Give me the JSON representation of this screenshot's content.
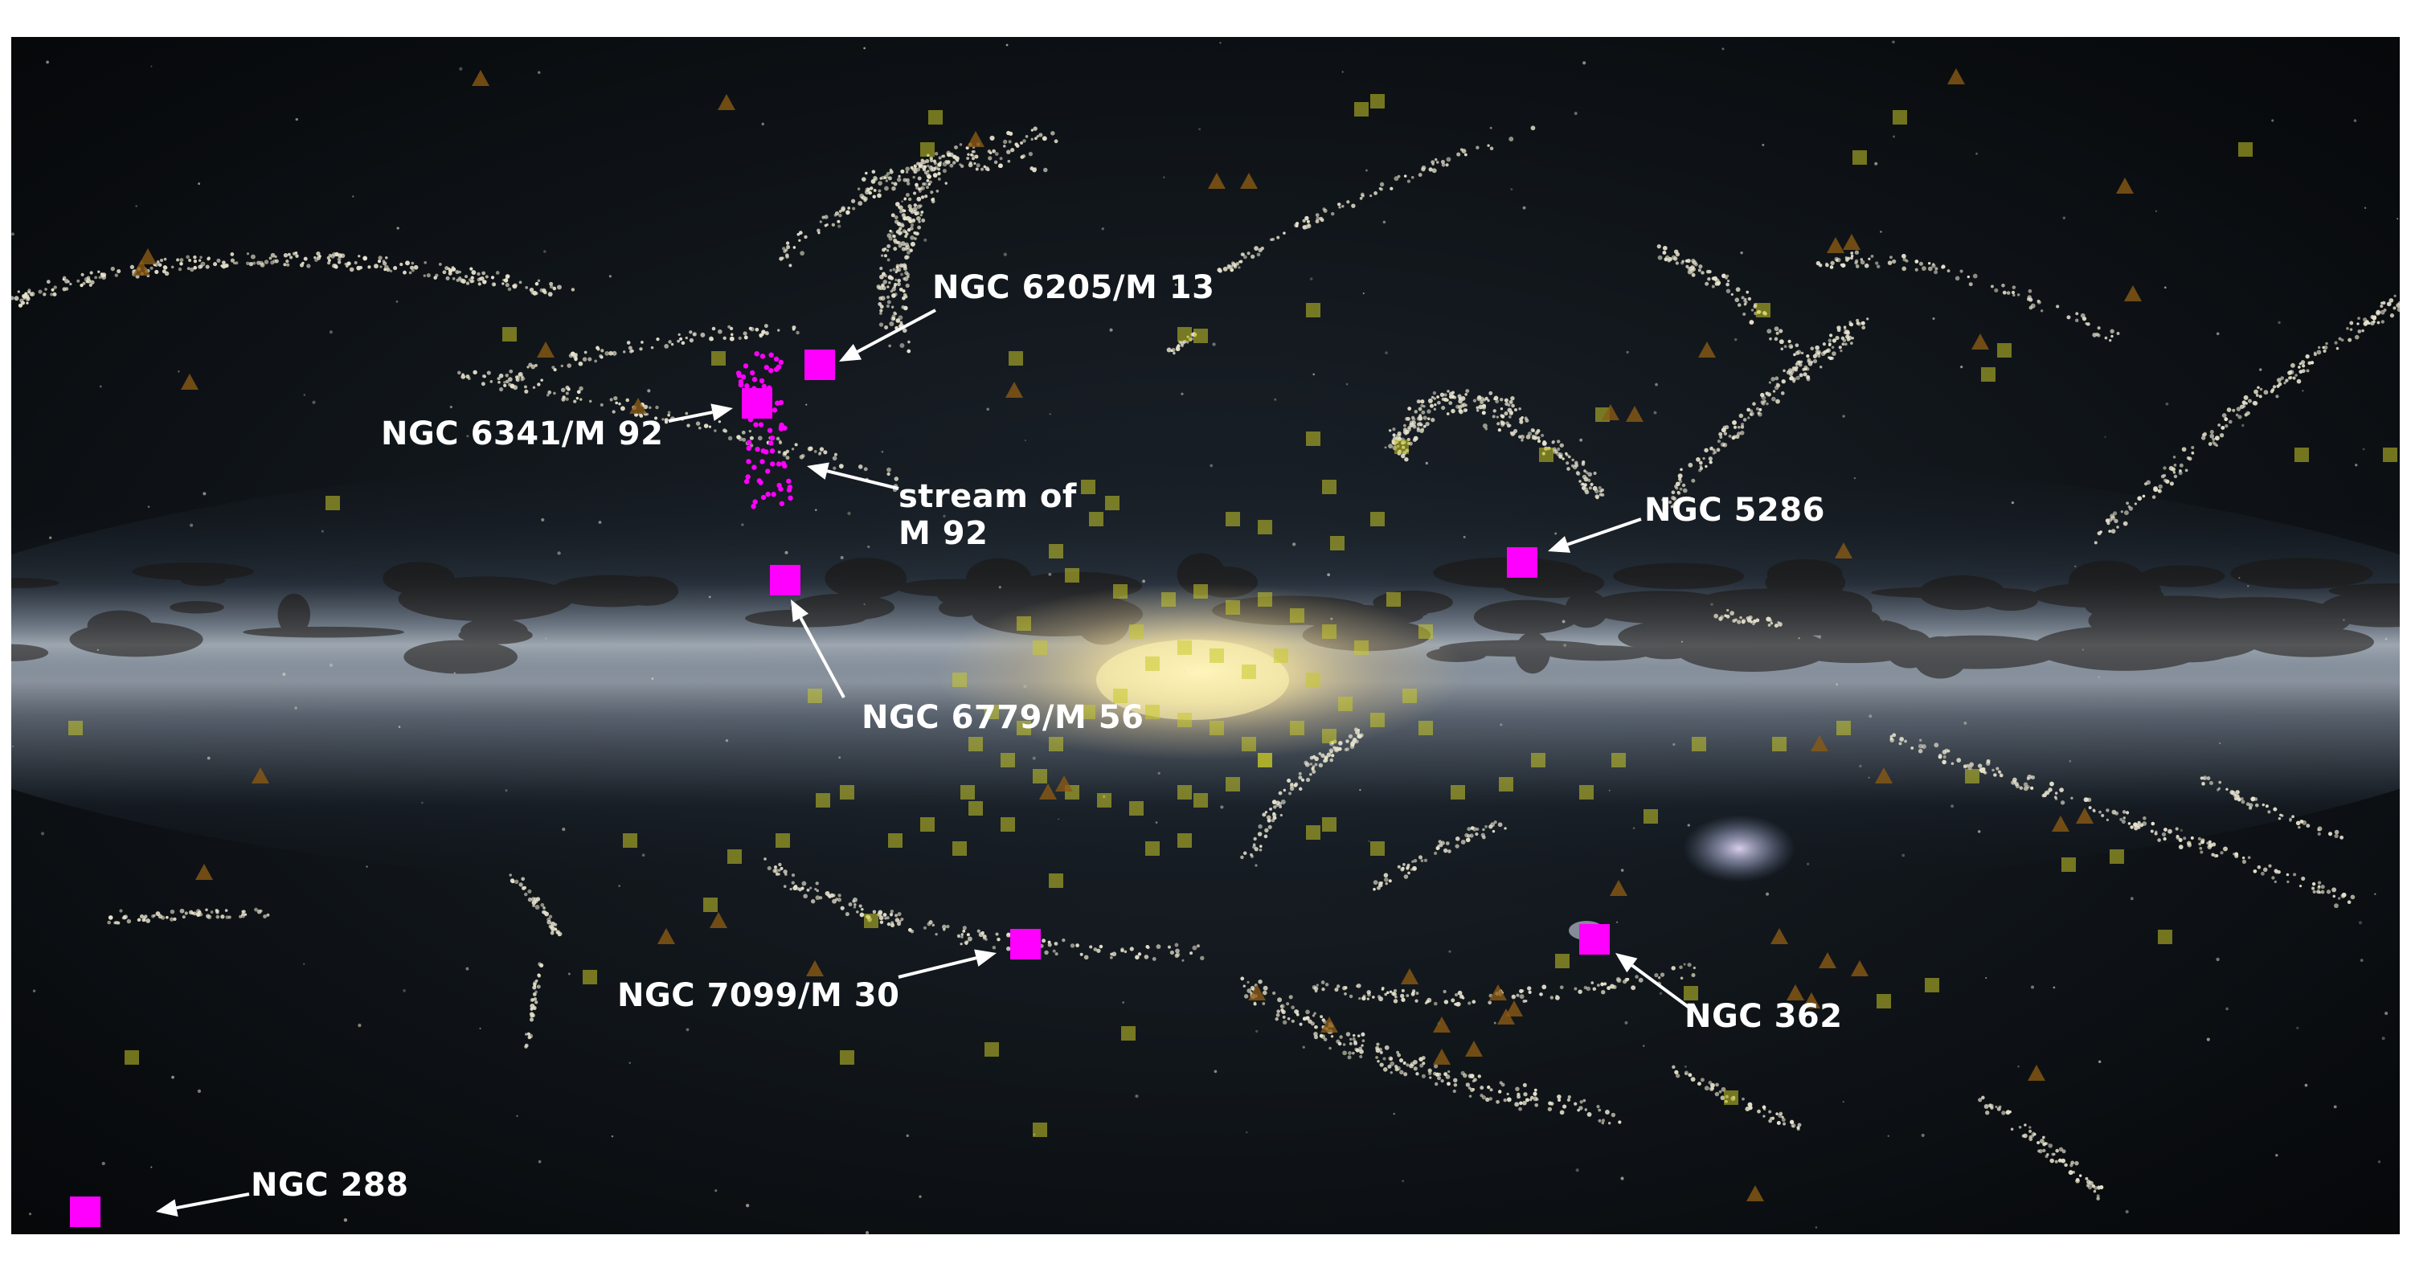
{
  "colors": {
    "cluster_highlight": "#ff00ff",
    "globular_cluster_square": "#c8c828",
    "triangle_marker": "#8a5a14",
    "stream_stars": "#e6e2cc",
    "annotation": "#ffffff"
  },
  "annotations": {
    "ngc6205": "NGC 6205/M 13",
    "ngc6341": "NGC 6341/M 92",
    "stream_m92_line1": "stream of",
    "stream_m92_line2": "M 92",
    "ngc5286": "NGC 5286",
    "ngc6779": "NGC 6779/M 56",
    "ngc7099": "NGC 7099/M 30",
    "ngc362": "NGC 362",
    "ngc288": "NGC 288"
  }
}
